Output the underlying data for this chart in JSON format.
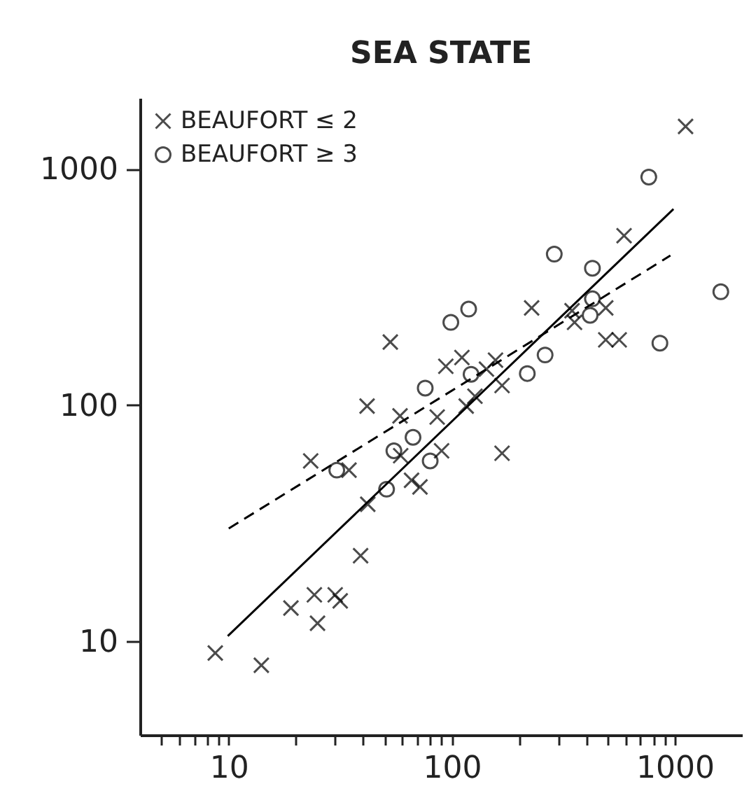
{
  "chart_data": {
    "type": "scatter",
    "title": "SEA STATE",
    "series": [
      {
        "name": "BEAUFORT ≤ 2",
        "type": "scatter",
        "marker": "cross",
        "color": "#000000",
        "x": [
          1117,
          592,
          53,
          228,
          346,
          355,
          490,
          490,
          563,
          94,
          111,
          143,
          157,
          168,
          41.7,
          58.6,
          86,
          116,
          127,
          90,
          168,
          23.3,
          34.6,
          59,
          66,
          72,
          42,
          39,
          19,
          24.2,
          30,
          31.6,
          25,
          8.7,
          14
        ],
        "values": [
          1515,
          522,
          185,
          258,
          251,
          224,
          258,
          189,
          189,
          146,
          159,
          142,
          155,
          121,
          99,
          90,
          89,
          99,
          109,
          64,
          62.5,
          58,
          53,
          61,
          48,
          45,
          38,
          23,
          13.8,
          15.7,
          15.7,
          14.8,
          11.9,
          8.9,
          7.9
        ]
      },
      {
        "name": "BEAUFORT ≥ 3",
        "type": "scatter",
        "marker": "circle",
        "color": "#000000",
        "x": [
          764,
          288,
          427,
          427,
          417,
          1607,
          857,
          99,
          119,
          76,
          122,
          262,
          218,
          30.5,
          55,
          67,
          51,
          80
        ],
        "values": [
          925,
          436,
          380,
          282,
          240,
          302,
          183,
          224,
          255,
          118,
          135,
          163,
          136,
          53,
          64,
          73,
          44,
          58
        ]
      },
      {
        "type": "line",
        "line_style": "solid",
        "color": "#000000",
        "x": [
          9.9,
          986
        ],
        "values": [
          10.5,
          677
        ]
      },
      {
        "type": "line",
        "line_style": "dashed",
        "color": "#000000",
        "x": [
          10,
          955
        ],
        "values": [
          30,
          430
        ]
      }
    ],
    "log": "xy",
    "grid": false,
    "legend": "top left",
    "xlim": [
      4,
      2000
    ],
    "ylim": [
      4,
      2000
    ],
    "xticks": [
      {
        "value": 5,
        "label": null
      },
      {
        "value": 6,
        "label": null
      },
      {
        "value": 7,
        "label": null
      },
      {
        "value": 8,
        "label": null
      },
      {
        "value": 9,
        "label": null
      },
      10,
      {
        "value": 20,
        "label": null
      },
      {
        "value": 30,
        "label": null
      },
      {
        "value": 40,
        "label": null
      },
      {
        "value": 50,
        "label": null
      },
      {
        "value": 60,
        "label": null
      },
      {
        "value": 70,
        "label": null
      },
      {
        "value": 80,
        "label": null
      },
      {
        "value": 90,
        "label": null
      },
      100,
      {
        "value": 200,
        "label": null
      },
      {
        "value": 300,
        "label": null
      },
      {
        "value": 400,
        "label": null
      },
      {
        "value": 500,
        "label": null
      },
      {
        "value": 600,
        "label": null
      },
      {
        "value": 700,
        "label": null
      },
      {
        "value": 800,
        "label": null
      },
      {
        "value": 900,
        "label": null
      },
      1000
    ],
    "yticks": [
      10,
      100,
      1000
    ]
  }
}
